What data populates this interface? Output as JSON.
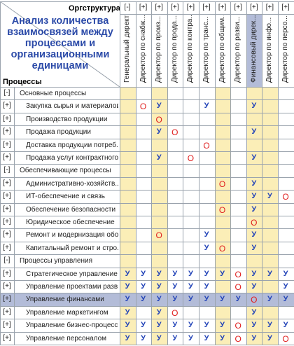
{
  "headers": {
    "title": "Анализ количества взаимосвязей между процессами и организационными единицами",
    "org_axis": "Оргструктура",
    "process_axis": "Процессы"
  },
  "columns": [
    {
      "toggle": "[-]",
      "label": "Генеральный директор"
    },
    {
      "toggle": "[+]",
      "label": "Директор по снабж..."
    },
    {
      "toggle": "[+]",
      "label": "Директор по произ..."
    },
    {
      "toggle": "[+]",
      "label": "Директор по прода..."
    },
    {
      "toggle": "[+]",
      "label": "Директор по контра..."
    },
    {
      "toggle": "[+]",
      "label": "Директор по транс..."
    },
    {
      "toggle": "[+]",
      "label": "Директор по общим..."
    },
    {
      "toggle": "[+]",
      "label": "Директор по разви..."
    },
    {
      "toggle": "[+]",
      "label": "Финансовый дирек..."
    },
    {
      "toggle": "[+]",
      "label": "Директор по инфо..."
    },
    {
      "toggle": "[+]",
      "label": "Директор по персо..."
    }
  ],
  "rows": [
    {
      "toggle": "[-]",
      "label": "Основные процессы",
      "level": 1,
      "marks": [
        "",
        "",
        "",
        "",
        "",
        "",
        "",
        "",
        "",
        "",
        ""
      ]
    },
    {
      "toggle": "[+]",
      "label": "Закупка сырья и материалов",
      "level": 2,
      "marks": [
        "",
        "О",
        "У",
        "",
        "",
        "У",
        "",
        "",
        "У",
        "",
        ""
      ]
    },
    {
      "toggle": "[+]",
      "label": "Производство продукции",
      "level": 2,
      "marks": [
        "",
        "",
        "О",
        "",
        "",
        "",
        "",
        "",
        "",
        "",
        ""
      ]
    },
    {
      "toggle": "[+]",
      "label": "Продажа продукции",
      "level": 2,
      "marks": [
        "",
        "",
        "У",
        "О",
        "",
        "",
        "",
        "",
        "У",
        "",
        ""
      ]
    },
    {
      "toggle": "[+]",
      "label": "Доставка продукции потреб...",
      "level": 2,
      "marks": [
        "",
        "",
        "",
        "",
        "",
        "О",
        "",
        "",
        "",
        "",
        ""
      ]
    },
    {
      "toggle": "[+]",
      "label": "Продажа услуг контрактного...",
      "level": 2,
      "marks": [
        "",
        "",
        "У",
        "",
        "О",
        "",
        "",
        "",
        "У",
        "",
        ""
      ]
    },
    {
      "toggle": "[-]",
      "label": "Обеспечивающие процессы",
      "level": 1,
      "marks": [
        "",
        "",
        "",
        "",
        "",
        "",
        "",
        "",
        "",
        "",
        ""
      ]
    },
    {
      "toggle": "[+]",
      "label": "Административно-хозяйств...",
      "level": 2,
      "marks": [
        "",
        "",
        "",
        "",
        "",
        "",
        "О",
        "",
        "У",
        "",
        ""
      ]
    },
    {
      "toggle": "[+]",
      "label": "ИТ-обеспечение и связь",
      "level": 2,
      "marks": [
        "",
        "",
        "",
        "",
        "",
        "",
        "",
        "",
        "У",
        "У",
        "О"
      ]
    },
    {
      "toggle": "[+]",
      "label": "Обеспечение безопасности",
      "level": 2,
      "marks": [
        "",
        "",
        "",
        "",
        "",
        "",
        "О",
        "",
        "У",
        "",
        ""
      ]
    },
    {
      "toggle": "[+]",
      "label": "Юридическое обеспечение",
      "level": 2,
      "marks": [
        "",
        "",
        "",
        "",
        "",
        "",
        "",
        "",
        "О",
        "",
        ""
      ]
    },
    {
      "toggle": "[+]",
      "label": "Ремонт и модернизация обо...",
      "level": 2,
      "marks": [
        "",
        "",
        "О",
        "",
        "",
        "У",
        "",
        "",
        "У",
        "",
        ""
      ]
    },
    {
      "toggle": "[+]",
      "label": "Капитальный ремонт и стро...",
      "level": 2,
      "marks": [
        "",
        "",
        "",
        "",
        "",
        "У",
        "О",
        "",
        "У",
        "",
        ""
      ]
    },
    {
      "toggle": "[-]",
      "label": "Процессы управления",
      "level": 1,
      "marks": [
        "",
        "",
        "",
        "",
        "",
        "",
        "",
        "",
        "",
        "",
        ""
      ]
    },
    {
      "toggle": "[+]",
      "label": "Стратегическое управление",
      "level": 2,
      "marks": [
        "У",
        "У",
        "У",
        "У",
        "У",
        "У",
        "У",
        "О",
        "У",
        "У",
        "У"
      ]
    },
    {
      "toggle": "[+]",
      "label": "Управление проектами разв...",
      "level": 2,
      "marks": [
        "У",
        "У",
        "У",
        "У",
        "У",
        "У",
        "",
        "О",
        "У",
        "",
        "У"
      ]
    },
    {
      "toggle": "[+]",
      "label": "Управление финансами",
      "level": 2,
      "marks": [
        "У",
        "У",
        "У",
        "У",
        "У",
        "У",
        "У",
        "У",
        "О",
        "У",
        "У"
      ]
    },
    {
      "toggle": "[+]",
      "label": "Управление маркетингом",
      "level": 2,
      "marks": [
        "У",
        "",
        "У",
        "О",
        "",
        "",
        "",
        "",
        "У",
        "",
        ""
      ]
    },
    {
      "toggle": "[+]",
      "label": "Управление бизнес-процесс...",
      "level": 2,
      "marks": [
        "У",
        "У",
        "У",
        "У",
        "У",
        "У",
        "У",
        "О",
        "У",
        "У",
        "У"
      ]
    },
    {
      "toggle": "[+]",
      "label": "Управление персоналом",
      "level": 2,
      "marks": [
        "У",
        "У",
        "У",
        "У",
        "У",
        "У",
        "У",
        "О",
        "У",
        "У",
        "О"
      ]
    }
  ],
  "selected_row": "Управление финансами",
  "selected_column": "Финансовый дирек...",
  "colors": {
    "mark_u": "#2344b8",
    "mark_o": "#e02020",
    "highlight_column": "#fbeeb7",
    "selected": "#b3bcd8",
    "title": "#2b4aa8"
  }
}
